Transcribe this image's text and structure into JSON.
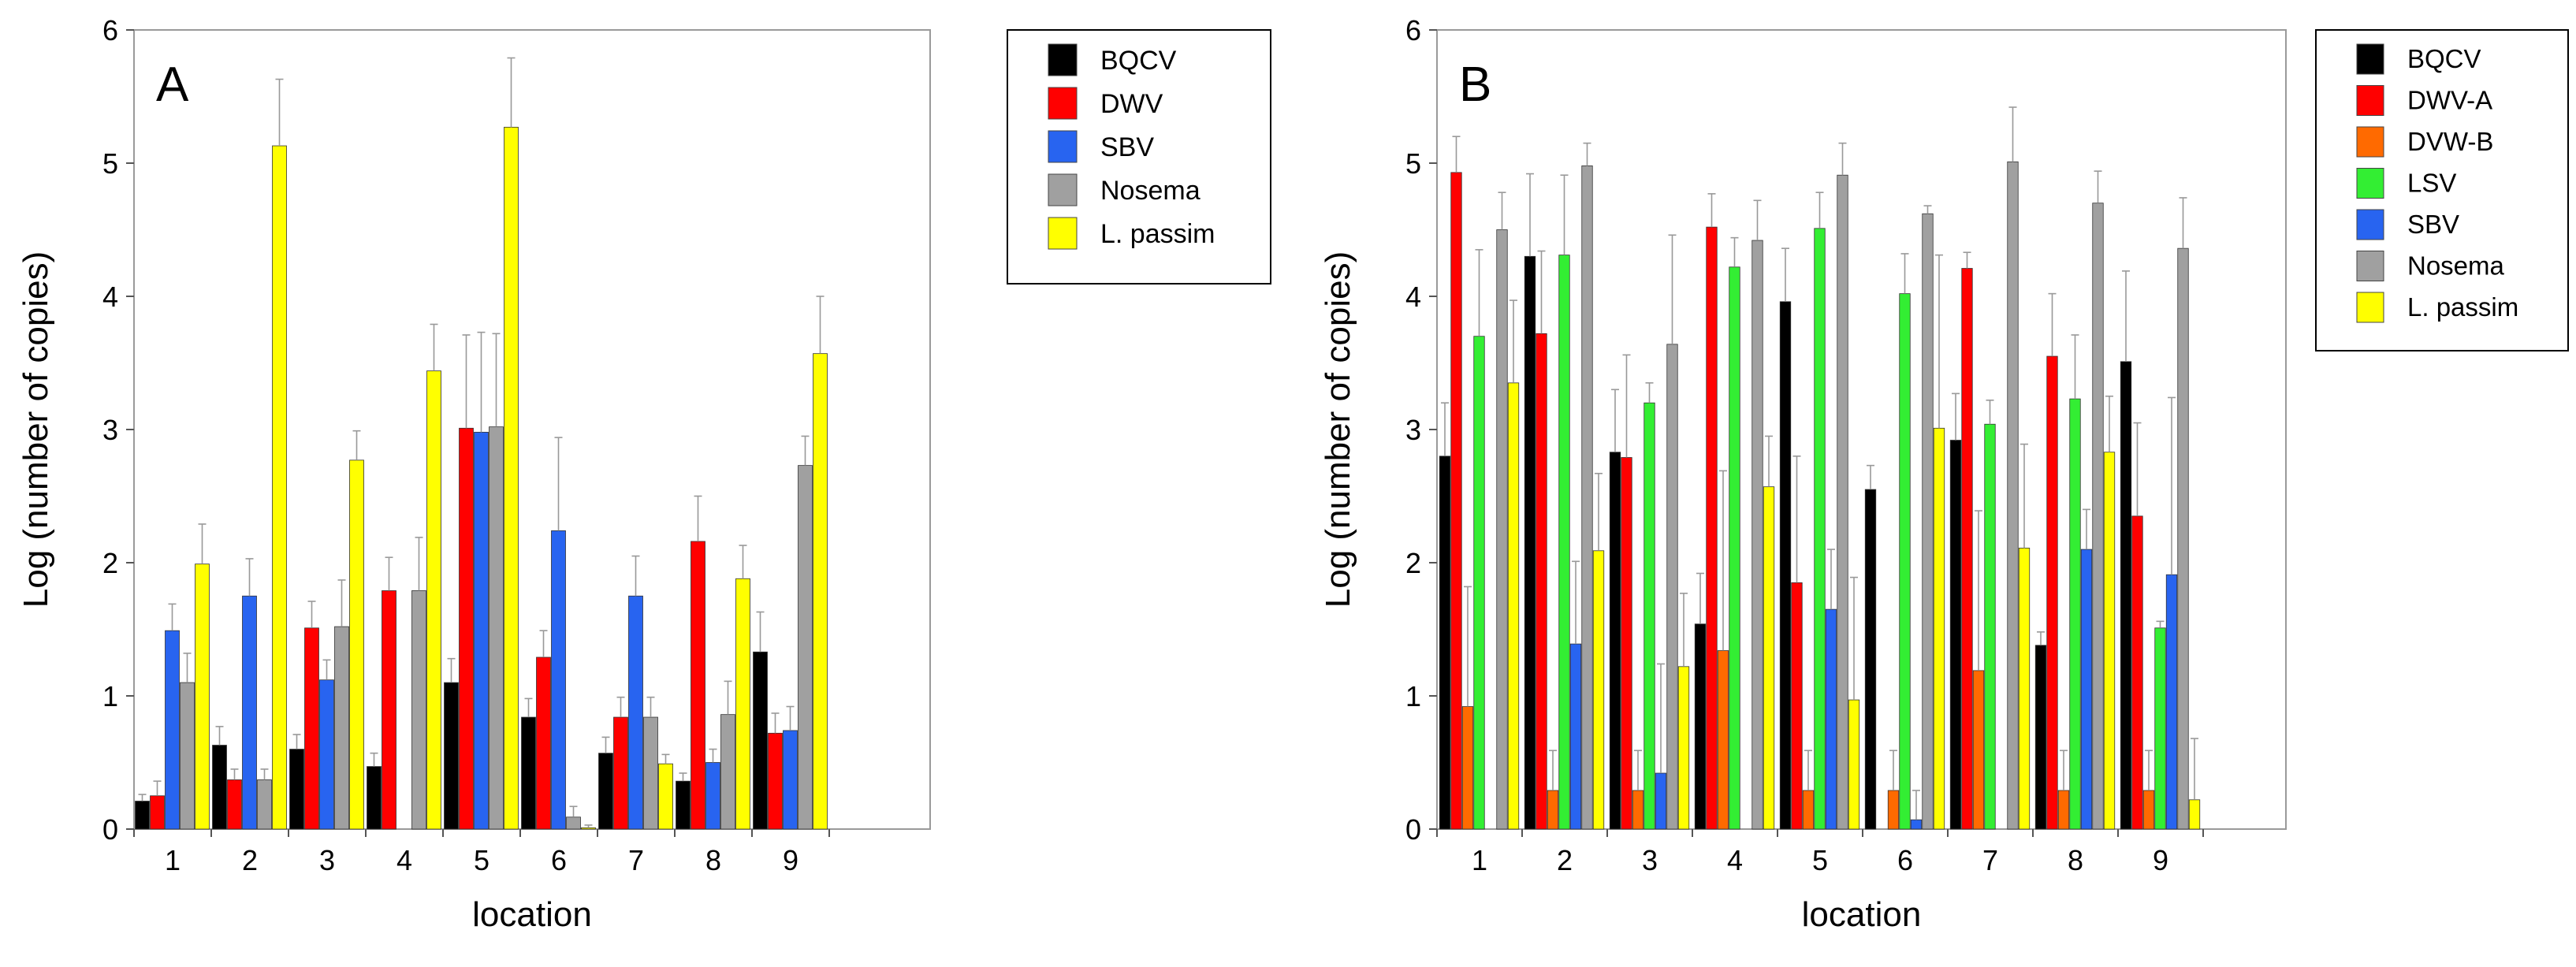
{
  "chart_data": [
    {
      "type": "bar",
      "panel_label": "A",
      "xlabel": "location",
      "ylabel": "Log (number of copies)",
      "ylim": [
        0,
        6
      ],
      "yticks": [
        0,
        1,
        2,
        3,
        4,
        5,
        6
      ],
      "categories": [
        "1",
        "2",
        "3",
        "4",
        "5",
        "6",
        "7",
        "8",
        "9"
      ],
      "legend_position": "outside-right-top",
      "series": [
        {
          "name": "BQCV",
          "color": "#000000",
          "values": [
            0.21,
            0.63,
            0.6,
            0.47,
            1.1,
            0.84,
            0.57,
            0.36,
            1.33
          ],
          "errors": [
            0.05,
            0.14,
            0.11,
            0.1,
            0.18,
            0.14,
            0.12,
            0.06,
            0.3
          ]
        },
        {
          "name": "DWV",
          "color": "#ff0000",
          "values": [
            0.25,
            0.37,
            1.51,
            1.79,
            3.01,
            1.29,
            0.84,
            2.16,
            0.72
          ],
          "errors": [
            0.11,
            0.08,
            0.2,
            0.25,
            0.7,
            0.2,
            0.15,
            0.34,
            0.15
          ]
        },
        {
          "name": "SBV",
          "color": "#2864f0",
          "values": [
            1.49,
            1.75,
            1.12,
            0.0,
            2.98,
            2.24,
            1.75,
            0.5,
            0.74
          ],
          "errors": [
            0.2,
            0.28,
            0.15,
            0.0,
            0.75,
            0.7,
            0.3,
            0.1,
            0.18
          ]
        },
        {
          "name": "Nosema",
          "color": "#a0a0a0",
          "values": [
            1.1,
            0.37,
            1.52,
            1.79,
            3.02,
            0.09,
            0.84,
            0.86,
            2.73
          ],
          "errors": [
            0.22,
            0.08,
            0.35,
            0.4,
            0.7,
            0.08,
            0.15,
            0.25,
            0.22
          ]
        },
        {
          "name": "L. passim",
          "color": "#ffff00",
          "values": [
            1.99,
            5.13,
            2.77,
            3.44,
            5.27,
            0.01,
            0.49,
            1.88,
            3.57
          ],
          "errors": [
            0.3,
            0.5,
            0.22,
            0.35,
            0.52,
            0.02,
            0.07,
            0.25,
            0.43
          ]
        }
      ]
    },
    {
      "type": "bar",
      "panel_label": "B",
      "xlabel": "location",
      "ylabel": "Log (number of copies)",
      "ylim": [
        0,
        6
      ],
      "yticks": [
        0,
        1,
        2,
        3,
        4,
        5,
        6
      ],
      "categories": [
        "1",
        "2",
        "3",
        "4",
        "5",
        "6",
        "7",
        "8",
        "9"
      ],
      "legend_position": "outside-right-top",
      "series": [
        {
          "name": "BQCV",
          "color": "#000000",
          "values": [
            2.8,
            4.3,
            2.83,
            1.54,
            3.96,
            2.55,
            2.92,
            1.38,
            3.51
          ],
          "errors": [
            0.4,
            0.62,
            0.47,
            0.38,
            0.4,
            0.18,
            0.35,
            0.1,
            0.68
          ]
        },
        {
          "name": "DWV-A",
          "color": "#ff0000",
          "values": [
            4.93,
            3.72,
            2.79,
            4.52,
            1.85,
            0.0,
            4.21,
            3.55,
            2.35
          ],
          "errors": [
            0.27,
            0.62,
            0.77,
            0.25,
            0.95,
            0.0,
            0.12,
            0.47,
            0.7
          ]
        },
        {
          "name": "DVW-B",
          "color": "#ff6a00",
          "values": [
            0.92,
            0.29,
            0.29,
            1.34,
            0.29,
            0.29,
            1.19,
            0.29,
            0.29
          ],
          "errors": [
            0.9,
            0.3,
            0.3,
            1.35,
            0.3,
            0.3,
            1.2,
            0.3,
            0.3
          ]
        },
        {
          "name": "LSV",
          "color": "#33ee33",
          "values": [
            3.7,
            4.31,
            3.2,
            4.22,
            4.51,
            4.02,
            3.04,
            3.23,
            1.51
          ],
          "errors": [
            0.65,
            0.6,
            0.15,
            0.22,
            0.27,
            0.3,
            0.18,
            0.48,
            0.05
          ]
        },
        {
          "name": "SBV",
          "color": "#2864f0",
          "values": [
            0.0,
            1.39,
            0.42,
            0.0,
            1.65,
            0.07,
            0.0,
            2.1,
            1.91
          ],
          "errors": [
            0.0,
            0.62,
            0.82,
            0.0,
            0.45,
            0.22,
            0.0,
            0.3,
            1.33
          ]
        },
        {
          "name": "Nosema",
          "color": "#a0a0a0",
          "values": [
            4.5,
            4.98,
            3.64,
            4.42,
            4.91,
            4.62,
            5.01,
            4.7,
            4.36
          ],
          "errors": [
            0.28,
            0.17,
            0.82,
            0.3,
            0.24,
            0.06,
            0.41,
            0.24,
            0.38
          ]
        },
        {
          "name": "L. passim",
          "color": "#ffff00",
          "values": [
            3.35,
            2.09,
            1.22,
            2.57,
            0.97,
            3.01,
            2.11,
            2.83,
            0.22
          ],
          "errors": [
            0.62,
            0.58,
            0.55,
            0.38,
            0.92,
            1.3,
            0.78,
            0.42,
            0.46
          ]
        }
      ]
    }
  ]
}
